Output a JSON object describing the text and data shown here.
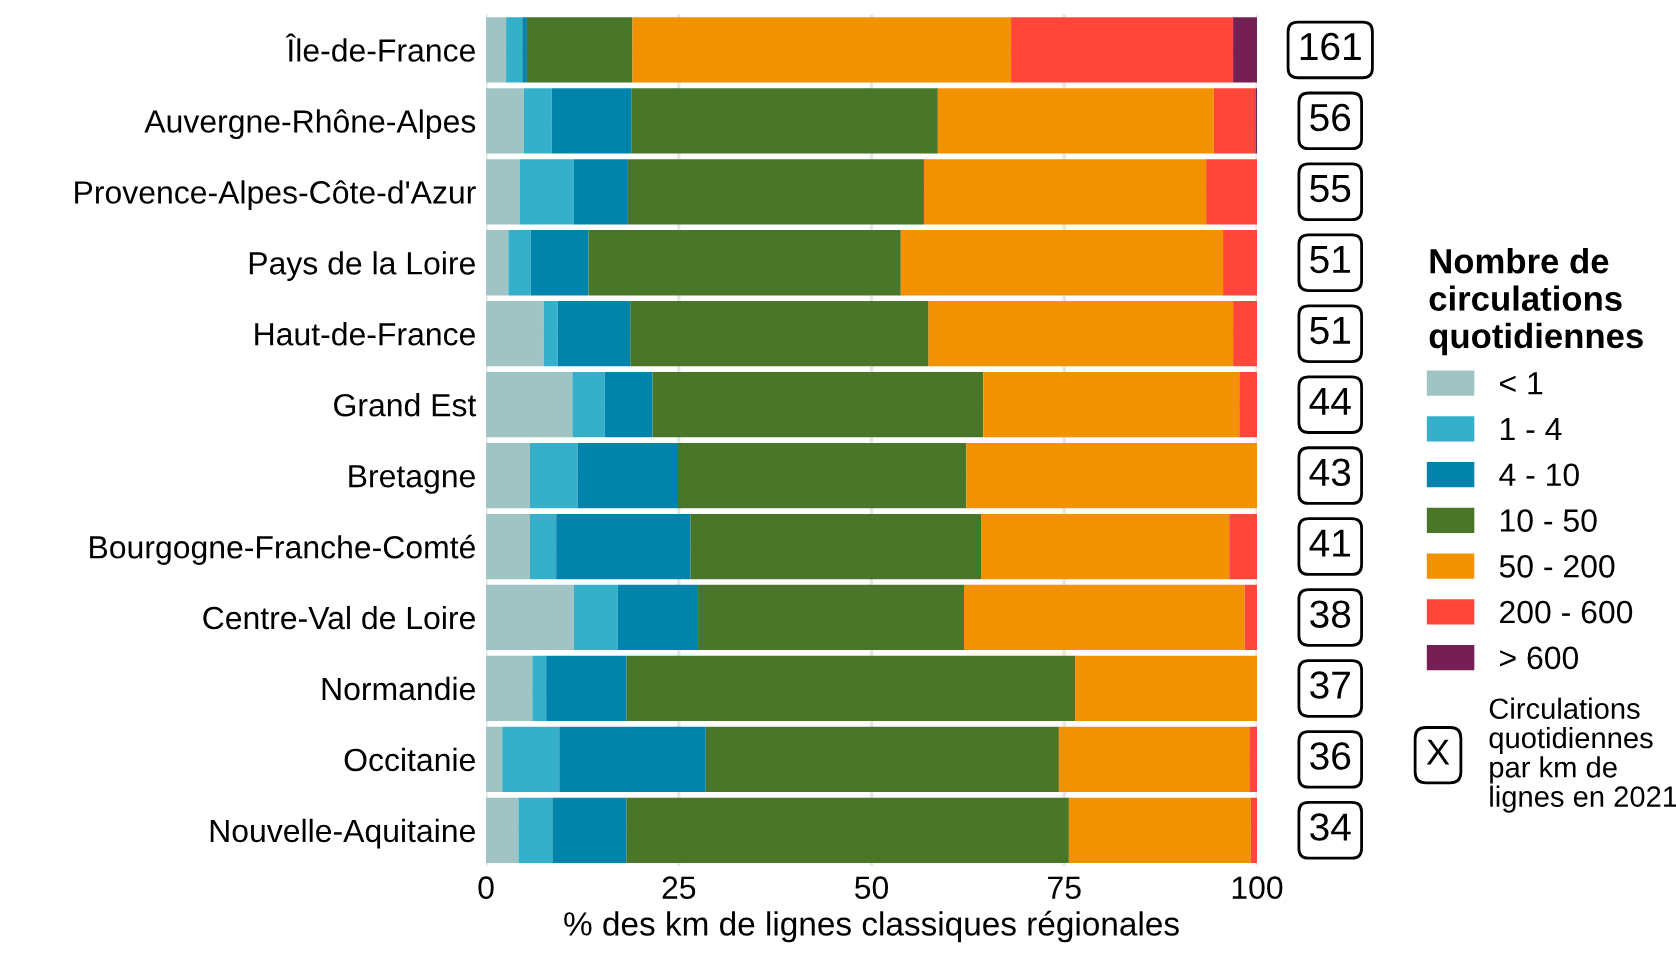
{
  "chart_data": {
    "type": "bar",
    "orientation": "horizontal",
    "stacked": true,
    "categories": [
      "Île-de-France",
      "Auvergne-Rhône-Alpes",
      "Provence-Alpes-Côte-d'Azur",
      "Pays de la Loire",
      "Haut-de-France",
      "Grand Est",
      "Bretagne",
      "Bourgogne-Franche-Comté",
      "Centre-Val de Loire",
      "Normandie",
      "Occitanie",
      "Nouvelle-Aquitaine"
    ],
    "series": [
      {
        "name": "< 1",
        "color": "#a0c4c4",
        "values": [
          2.6,
          4.9,
          4.4,
          2.9,
          7.5,
          11.2,
          5.7,
          5.7,
          11.4,
          6.0,
          2.1,
          4.2
        ]
      },
      {
        "name": "1 - 4",
        "color": "#36b0ca",
        "values": [
          2.1,
          3.6,
          7.0,
          2.9,
          1.8,
          4.2,
          6.2,
          3.4,
          5.7,
          1.8,
          7.4,
          4.4
        ]
      },
      {
        "name": "4 - 10",
        "color": "#0084ab",
        "values": [
          0.6,
          10.4,
          7.0,
          7.5,
          9.4,
          6.2,
          13.0,
          17.4,
          10.4,
          10.4,
          19.0,
          9.6
        ]
      },
      {
        "name": "10 - 50",
        "color": "#4a7629",
        "values": [
          13.7,
          39.7,
          38.4,
          40.5,
          38.7,
          42.9,
          37.4,
          37.7,
          34.5,
          58.2,
          45.8,
          57.4
        ]
      },
      {
        "name": "50 - 200",
        "color": "#f29200",
        "values": [
          49.1,
          35.8,
          36.6,
          41.8,
          39.5,
          33.2,
          37.7,
          32.2,
          36.4,
          23.6,
          24.7,
          23.6
        ]
      },
      {
        "name": "200 - 600",
        "color": "#ff463a",
        "values": [
          28.8,
          5.4,
          6.7,
          4.4,
          3.1,
          2.3,
          0.3,
          3.6,
          1.8,
          null,
          1.0,
          0.8
        ]
      },
      {
        "name": "> 600",
        "color": "#761f54",
        "values": [
          3.1,
          0.3,
          null,
          null,
          null,
          null,
          null,
          null,
          null,
          null,
          null,
          null
        ]
      }
    ],
    "xlabel": "% des km de lignes classiques régionales",
    "legend_title": "Nombre de\ncirculations\nquotidiennes",
    "annotations": [
      "X",
      "Circulations\nquotidiennes\npar km de\nlignes en 2021",
      "161",
      "56",
      "55",
      "51",
      "51",
      "44",
      "43",
      "41",
      "38",
      "37",
      "36",
      "34"
    ],
    "xlim": [
      0,
      100
    ],
    "xticks": [
      0,
      25,
      50,
      75,
      100
    ],
    "grid": true,
    "legend": "right"
  }
}
